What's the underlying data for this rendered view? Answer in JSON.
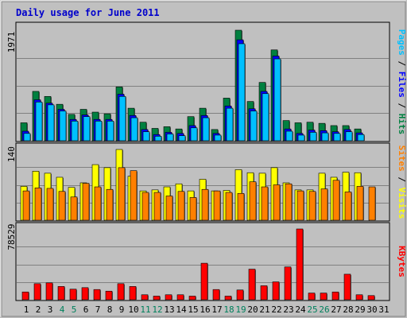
{
  "colors": {
    "hits": "#008040",
    "files": "#0000ff",
    "pages": "#00c0ff",
    "visits": "#ffff00",
    "sites": "#ff8000",
    "kbytes": "#ff0000",
    "weekend": "#00805c",
    "weekday": "#000000",
    "panel": "#c0c0c0",
    "frame": "#a0a0a0",
    "title": "#0000cc"
  },
  "chart_data": {
    "type": "bar",
    "title": "Daily usage for June 2011",
    "days": [
      "1",
      "2",
      "3",
      "4",
      "5",
      "6",
      "7",
      "8",
      "9",
      "10",
      "11",
      "12",
      "13",
      "14",
      "15",
      "16",
      "17",
      "18",
      "19",
      "20",
      "21",
      "22",
      "23",
      "24",
      "25",
      "26",
      "27",
      "28",
      "29",
      "30",
      "31"
    ],
    "weekend_days": [
      4,
      5,
      11,
      12,
      18,
      19,
      25,
      26
    ],
    "panels": [
      {
        "id": "top",
        "max_label": "1971",
        "ymax": 1971,
        "legend": [
          {
            "text": "Pages",
            "color": "#00c0ff"
          },
          {
            "text": " / ",
            "color": "#000000"
          },
          {
            "text": "Files",
            "color": "#0000ff"
          },
          {
            "text": " / ",
            "color": "#000000"
          },
          {
            "text": "Hits",
            "color": "#008040"
          }
        ],
        "series": [
          {
            "name": "Hits",
            "color": "#008040",
            "values": [
              320,
              880,
              790,
              650,
              470,
              560,
              510,
              480,
              960,
              580,
              330,
              220,
              250,
              210,
              430,
              580,
              200,
              760,
              1971,
              700,
              1040,
              1620,
              360,
              320,
              330,
              310,
              270,
              270,
              210,
              0,
              0
            ]
          },
          {
            "name": "Files",
            "color": "#0000ff",
            "values": [
              170,
              730,
              670,
              560,
              380,
              460,
              380,
              380,
              830,
              450,
              200,
              110,
              150,
              130,
              270,
              450,
              130,
              620,
              1800,
              570,
              880,
              1510,
              210,
              130,
              190,
              180,
              160,
              200,
              140,
              0,
              0
            ]
          },
          {
            "name": "Pages",
            "color": "#00c0ff",
            "values": [
              130,
              690,
              640,
              530,
              350,
              430,
              350,
              350,
              790,
              410,
              160,
              80,
              120,
              90,
              230,
              410,
              100,
              580,
              1730,
              530,
              840,
              1460,
              170,
              100,
              150,
              140,
              130,
              160,
              110,
              0,
              0
            ]
          }
        ]
      },
      {
        "id": "middle",
        "max_label": "140",
        "ymax": 140,
        "legend": [
          {
            "text": "Sites",
            "color": "#ff8000"
          },
          {
            "text": " / ",
            "color": "#000000"
          },
          {
            "text": "Visits",
            "color": "#ffff00"
          }
        ],
        "series": [
          {
            "name": "Visits",
            "color": "#ffff00",
            "values": [
              67,
              97,
              93,
              85,
              65,
              74,
              110,
              104,
              140,
              87,
              58,
              60,
              66,
              72,
              58,
              81,
              58,
              59,
              100,
              94,
              93,
              104,
              74,
              60,
              60,
              93,
              85,
              95,
              94,
              0,
              0
            ]
          },
          {
            "name": "Sites",
            "color": "#ff8000",
            "values": [
              58,
              64,
              63,
              57,
              46,
              73,
              66,
              61,
              104,
              98,
              55,
              55,
              48,
              57,
              45,
              61,
              58,
              55,
              53,
              76,
              66,
              70,
              72,
              58,
              57,
              62,
              79,
              56,
              67,
              66,
              0
            ]
          }
        ]
      },
      {
        "id": "bottom",
        "max_label": "78529",
        "ymax": 78529,
        "legend": [
          {
            "text": "KBytes",
            "color": "#ff0000"
          }
        ],
        "series": [
          {
            "name": "KBytes",
            "color": "#ff0000",
            "values": [
              8600,
              17800,
              18700,
              14700,
              11700,
              13400,
              11300,
              9500,
              17800,
              14700,
              5500,
              4000,
              5500,
              5500,
              4000,
              40500,
              11300,
              4000,
              10800,
              33900,
              15500,
              19800,
              36400,
              78529,
              7400,
              7400,
              8600,
              28300,
              5500,
              4600,
              0
            ]
          }
        ]
      }
    ]
  }
}
